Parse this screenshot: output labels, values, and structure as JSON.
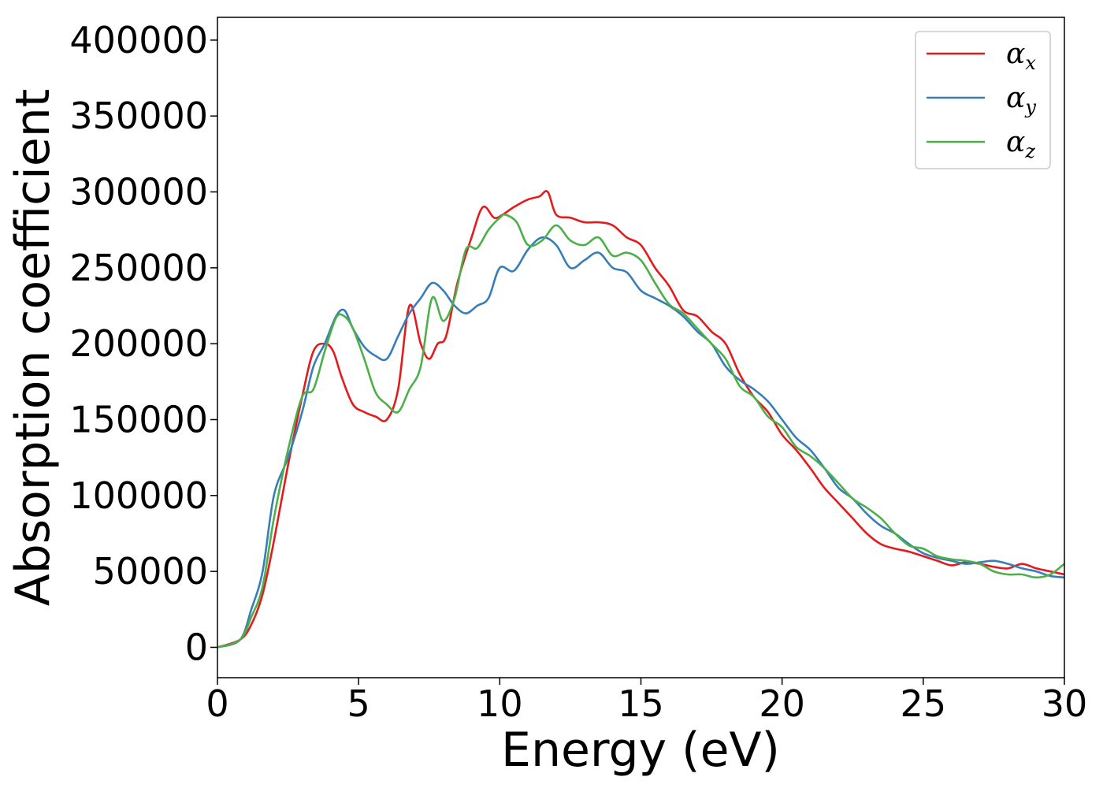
{
  "chart_data": {
    "type": "line",
    "xlabel": "Energy (eV)",
    "ylabel": "Absorption coefficient",
    "xlim": [
      0,
      30
    ],
    "ylim": [
      -20000,
      415000
    ],
    "xticks": [
      0,
      5,
      10,
      15,
      20,
      25,
      30
    ],
    "xtick_labels": [
      "0",
      "5",
      "10",
      "15",
      "20",
      "25",
      "30"
    ],
    "yticks": [
      0,
      50000,
      100000,
      150000,
      200000,
      250000,
      300000,
      350000,
      400000
    ],
    "ytick_labels": [
      "0",
      "50000",
      "100000",
      "150000",
      "200000",
      "250000",
      "300000",
      "350000",
      "400000"
    ],
    "grid": false,
    "legend_position": "top-right",
    "series": [
      {
        "name": "α",
        "subscript": "x",
        "color": "#e41a1c",
        "x": [
          0,
          0.8,
          1.2,
          1.6,
          2.0,
          2.5,
          3.0,
          3.4,
          3.8,
          4.1,
          4.4,
          4.8,
          5.2,
          5.6,
          6.0,
          6.4,
          6.8,
          7.2,
          7.5,
          7.8,
          8.1,
          8.5,
          9.0,
          9.4,
          9.8,
          10.1,
          10.5,
          11.0,
          11.4,
          11.7,
          12.0,
          12.5,
          13.0,
          13.5,
          14.0,
          14.5,
          15.0,
          15.5,
          16.0,
          16.5,
          17.0,
          17.5,
          18.0,
          18.5,
          19.0,
          19.5,
          20.0,
          20.5,
          21.0,
          21.5,
          22.0,
          22.5,
          23.0,
          23.5,
          24.0,
          24.5,
          25.0,
          25.5,
          26.0,
          26.5,
          27.0,
          27.5,
          28.0,
          28.5,
          29.0,
          29.5,
          30.0
        ],
        "y": [
          0,
          5000,
          15000,
          35000,
          70000,
          120000,
          165000,
          195000,
          200000,
          195000,
          178000,
          160000,
          155000,
          152000,
          150000,
          170000,
          225000,
          200000,
          190000,
          200000,
          205000,
          240000,
          270000,
          290000,
          283000,
          285000,
          290000,
          295000,
          297000,
          300000,
          285000,
          283000,
          280000,
          280000,
          278000,
          270000,
          265000,
          250000,
          238000,
          222000,
          218000,
          208000,
          200000,
          180000,
          165000,
          155000,
          140000,
          130000,
          118000,
          105000,
          95000,
          85000,
          75000,
          68000,
          65000,
          63000,
          60000,
          57000,
          54000,
          56000,
          55000,
          53000,
          52000,
          55000,
          52000,
          50000,
          48000
        ]
      },
      {
        "name": "α",
        "subscript": "y",
        "color": "#377eb8",
        "x": [
          0,
          0.8,
          1.2,
          1.6,
          2.0,
          2.5,
          3.0,
          3.4,
          3.8,
          4.2,
          4.5,
          4.8,
          5.2,
          5.6,
          6.0,
          6.4,
          6.8,
          7.2,
          7.6,
          8.0,
          8.4,
          8.8,
          9.2,
          9.6,
          10.0,
          10.5,
          11.0,
          11.5,
          12.0,
          12.5,
          13.0,
          13.5,
          14.0,
          14.5,
          15.0,
          15.5,
          16.0,
          16.5,
          17.0,
          17.5,
          18.0,
          18.5,
          19.0,
          19.5,
          20.0,
          20.5,
          21.0,
          21.5,
          22.0,
          22.5,
          23.0,
          23.5,
          24.0,
          24.5,
          25.0,
          25.5,
          26.0,
          26.5,
          27.0,
          27.5,
          28.0,
          28.5,
          29.0,
          29.5,
          30.0
        ],
        "y": [
          0,
          5000,
          25000,
          50000,
          100000,
          125000,
          155000,
          185000,
          200000,
          218000,
          222000,
          210000,
          198000,
          192000,
          190000,
          205000,
          220000,
          230000,
          240000,
          235000,
          225000,
          220000,
          225000,
          230000,
          250000,
          248000,
          262000,
          270000,
          265000,
          250000,
          255000,
          260000,
          250000,
          247000,
          235000,
          230000,
          225000,
          218000,
          208000,
          200000,
          185000,
          176000,
          170000,
          162000,
          150000,
          138000,
          130000,
          118000,
          105000,
          98000,
          88000,
          80000,
          75000,
          68000,
          62000,
          59000,
          57000,
          55000,
          56000,
          57000,
          55000,
          52000,
          50000,
          47000,
          46000
        ]
      },
      {
        "name": "α",
        "subscript": "z",
        "color": "#4daf4a",
        "x": [
          0,
          0.8,
          1.2,
          1.6,
          2.0,
          2.5,
          3.0,
          3.4,
          3.8,
          4.2,
          4.5,
          4.8,
          5.2,
          5.6,
          6.0,
          6.4,
          6.8,
          7.2,
          7.6,
          8.0,
          8.4,
          8.8,
          9.2,
          9.6,
          10.0,
          10.2,
          10.6,
          11.0,
          11.5,
          12.0,
          12.5,
          13.0,
          13.5,
          14.0,
          14.5,
          15.0,
          15.5,
          16.0,
          16.5,
          17.0,
          17.5,
          18.0,
          18.5,
          19.0,
          19.5,
          20.0,
          20.5,
          21.0,
          21.5,
          22.0,
          22.5,
          23.0,
          23.5,
          24.0,
          24.5,
          25.0,
          25.5,
          26.0,
          26.5,
          27.0,
          27.5,
          28.0,
          28.5,
          29.0,
          29.5,
          30.0
        ],
        "y": [
          0,
          5000,
          20000,
          40000,
          85000,
          130000,
          165000,
          170000,
          195000,
          217000,
          218000,
          210000,
          190000,
          168000,
          160000,
          155000,
          170000,
          185000,
          230000,
          215000,
          230000,
          262000,
          263000,
          275000,
          283000,
          285000,
          280000,
          265000,
          268000,
          278000,
          268000,
          265000,
          270000,
          258000,
          260000,
          255000,
          240000,
          226000,
          220000,
          210000,
          200000,
          190000,
          172000,
          165000,
          152000,
          145000,
          132000,
          126000,
          118000,
          108000,
          98000,
          92000,
          85000,
          75000,
          67000,
          65000,
          60000,
          58000,
          57000,
          55000,
          50000,
          48000,
          48000,
          46000,
          48000,
          55000
        ]
      }
    ]
  }
}
